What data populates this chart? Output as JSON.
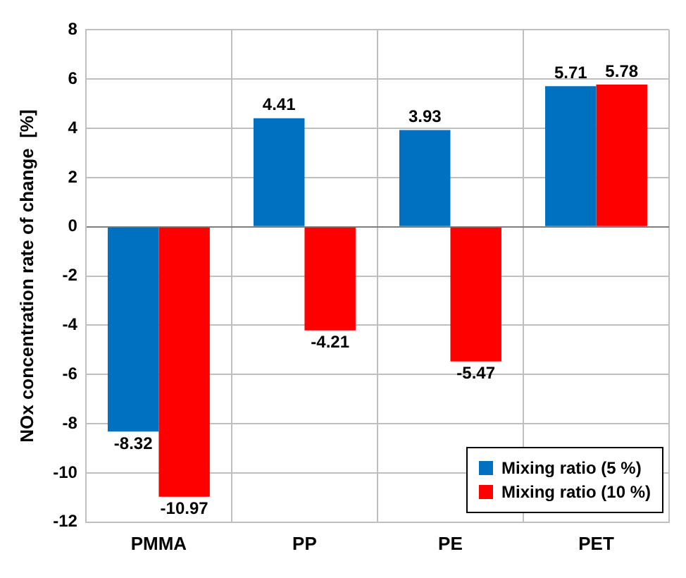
{
  "chart_data": {
    "type": "bar",
    "ylabel": "NOx concentration rate of change  [%]",
    "categories": [
      "PMMA",
      "PP",
      "PE",
      "PET"
    ],
    "series": [
      {
        "name": "Mixing ratio (5 %)",
        "color": "#0070c0",
        "values": [
          -8.32,
          4.41,
          3.93,
          5.71
        ]
      },
      {
        "name": "Mixing ratio (10 %)",
        "color": "#ff0000",
        "values": [
          -10.97,
          -4.21,
          -5.47,
          5.78
        ]
      }
    ],
    "ylim": [
      -12,
      8
    ],
    "yticks": [
      -12,
      -10,
      -8,
      -6,
      -4,
      -2,
      0,
      2,
      4,
      6,
      8
    ],
    "grid": true,
    "legend": "bottom right",
    "data_labels": true
  }
}
